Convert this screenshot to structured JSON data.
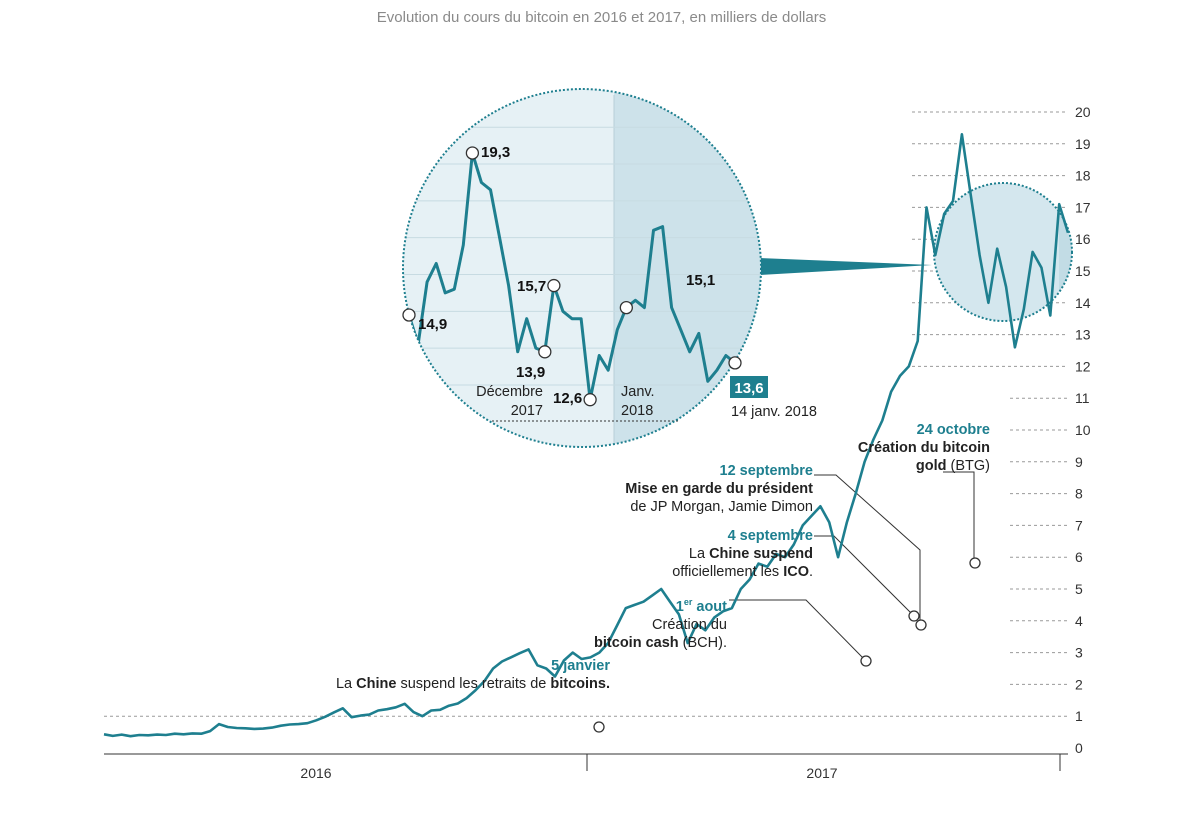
{
  "chart_data": {
    "type": "line",
    "title": "Evolution du cours du bitcoin en 2016 et 2017, en milliers de dollars",
    "ylim": [
      0,
      20
    ],
    "yticks": [
      "0",
      "1",
      "2",
      "3",
      "4",
      "5",
      "6",
      "7",
      "8",
      "9",
      "10",
      "11",
      "12",
      "13",
      "14",
      "15",
      "16",
      "17",
      "18",
      "19",
      "20"
    ],
    "xticks": [
      "2016",
      "2017"
    ],
    "series": [
      {
        "values": [
          0.43,
          0.38,
          0.42,
          0.37,
          0.41,
          0.4,
          0.42,
          0.41,
          0.45,
          0.43,
          0.46,
          0.45,
          0.53,
          0.75,
          0.66,
          0.63,
          0.62,
          0.6,
          0.61,
          0.64,
          0.7,
          0.74,
          0.75,
          0.78,
          0.87,
          0.98,
          1.12,
          1.25,
          0.97,
          1.02,
          1.05,
          1.18,
          1.22,
          1.28,
          1.39,
          1.13,
          1.0,
          1.18,
          1.2,
          1.33,
          1.4,
          1.57,
          1.81,
          2.1,
          2.5,
          2.72,
          2.85,
          2.98,
          3.1,
          2.6,
          2.5,
          2.25,
          2.75,
          3.0,
          2.8,
          2.85,
          3.0,
          3.3,
          3.85,
          4.4,
          4.5,
          4.6,
          4.8,
          5.0,
          4.6,
          4.2,
          3.3,
          3.9,
          3.7,
          4.1,
          4.3,
          4.4,
          5.0,
          5.3,
          5.8,
          5.7,
          6.1,
          6.0,
          6.4,
          7.0,
          7.3,
          7.6,
          7.1,
          6.0,
          7.1,
          8.0,
          9.0,
          9.7,
          10.3,
          11.2,
          11.7,
          12.0,
          12.8,
          17.0,
          15.5,
          16.8,
          17.2,
          19.3,
          17.4,
          15.5,
          14.0,
          15.7,
          14.5,
          12.6,
          13.8,
          15.6,
          15.1,
          13.6,
          17.1,
          16.2
        ]
      }
    ],
    "markers": [
      {
        "index": 27,
        "value": 0.9
      },
      {
        "index": 53,
        "value": 2.9
      },
      {
        "index": 61,
        "value": 4.4
      },
      {
        "index": 62,
        "value": 4.1
      },
      {
        "index": 76,
        "value": 6.0
      }
    ]
  },
  "inset": {
    "values": [
      14.9,
      14.1,
      15.8,
      16.3,
      15.5,
      15.6,
      16.8,
      19.3,
      18.5,
      18.3,
      17.0,
      15.7,
      13.9,
      14.8,
      14.0,
      13.9,
      15.7,
      15.0,
      14.8,
      14.8,
      12.6,
      13.8,
      13.4,
      14.5,
      15.1,
      15.3,
      15.1,
      17.2,
      17.3,
      15.1,
      14.5,
      13.9,
      14.4,
      13.1,
      13.4,
      13.8,
      13.6
    ],
    "labels": {
      "v1": "19,3",
      "v2": "14,9",
      "v3": "15,7",
      "v4": "13,9",
      "v5": "12,6",
      "v6": "15,1",
      "v7": "13,6",
      "last_date": "14 janv. 2018",
      "dec_line1": "Décembre",
      "dec_line2": "2017",
      "jan_line1": "Janv.",
      "jan_line2": "2018"
    }
  },
  "annotations": {
    "jan5": {
      "date": "5 janvier",
      "pre": "La ",
      "b1": "Chine",
      "mid": " suspend les retraits de ",
      "b2": "bitcoins."
    },
    "aug1": {
      "date_main": "1",
      "date_sup": "er",
      "date_rest": " aout",
      "line1": "Création du",
      "b": "bitcoin cash",
      "rest": " (BCH)."
    },
    "sep4": {
      "date": "4 septembre",
      "pre": "La ",
      "b1": "Chine suspend",
      "line2": "officiellement les ",
      "b2": "ICO",
      "end": "."
    },
    "sep12": {
      "date": "12 septembre",
      "b": "Mise en garde du président",
      "line2": "de JP Morgan, Jamie Dimon"
    },
    "oct24": {
      "date": "24 octobre",
      "b1": "Création du bitcoin",
      "b2": "gold",
      "rest": " (BTG)"
    }
  }
}
